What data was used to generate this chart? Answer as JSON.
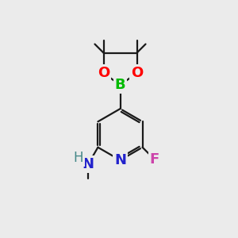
{
  "background_color": "#ebebeb",
  "bond_color": "#1a1a1a",
  "atom_colors": {
    "B": "#00bb00",
    "O": "#ff0000",
    "N_ring": "#2222cc",
    "N_amine": "#2222cc",
    "H": "#448888",
    "F": "#cc44aa",
    "C": "#1a1a1a"
  },
  "bond_lw": 1.6,
  "font_size_hetero": 13,
  "font_size_H": 12
}
